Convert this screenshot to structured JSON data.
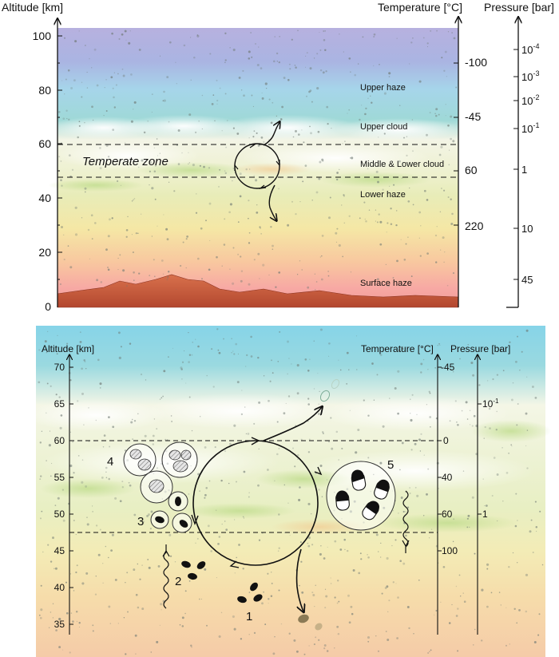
{
  "top": {
    "altitude_title": "Altitude [km]",
    "temperature_title": "Temperature [°C]",
    "pressure_title": "Pressure [bar]",
    "altitude_ticks": [
      "100",
      "80",
      "60",
      "40",
      "20",
      "0"
    ],
    "temperature_ticks": [
      "-100",
      "-45",
      "60",
      "220"
    ],
    "pressure_ticks": {
      "p1": "10",
      "p1e": "-4",
      "p2": "10",
      "p2e": "-3",
      "p3": "10",
      "p3e": "-2",
      "p4": "10",
      "p4e": "-1",
      "p5": "1",
      "p6": "10",
      "p7": "45"
    },
    "layers": {
      "upper_haze": "Upper haze",
      "upper_cloud": "Upper cloud",
      "middle_lower_cloud": "Middle & Lower cloud",
      "lower_haze": "Lower haze",
      "surface_haze": "Surface haze"
    },
    "zone_label": "Temperate zone"
  },
  "bottom": {
    "altitude_title": "Altitude [km]",
    "temperature_title": "Temperature [°C]",
    "pressure_title": "Pressure [bar]",
    "altitude_ticks": [
      "70",
      "65",
      "60",
      "55",
      "50",
      "45",
      "40",
      "35"
    ],
    "temperature_ticks": [
      "-45",
      "0",
      "40",
      "60",
      "100"
    ],
    "pressure_ticks": {
      "p1": "10",
      "p1e": "-1",
      "p2": "1"
    },
    "stage_numbers": [
      "1",
      "2",
      "3",
      "4",
      "5"
    ]
  }
}
